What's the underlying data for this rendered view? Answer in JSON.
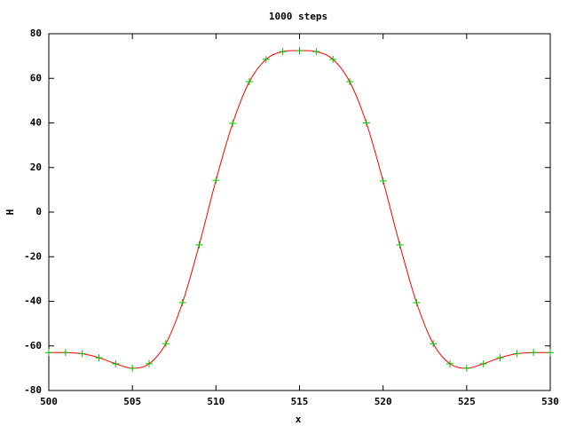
{
  "chart_data": {
    "type": "line",
    "title": "1000 steps",
    "x_label": "x",
    "y_label": "H",
    "x": [
      500,
      501,
      502,
      503,
      504,
      505,
      506,
      507,
      508,
      509,
      510,
      511,
      512,
      513,
      514,
      515,
      516,
      517,
      518,
      519,
      520,
      521,
      522,
      523,
      524,
      525,
      526,
      527,
      528,
      529,
      530
    ],
    "series": [
      {
        "color": "#ff0000",
        "style": "line",
        "values": [
          -63,
          -63,
          -63.5,
          -65.3,
          -68,
          -70,
          -68,
          -59,
          -40.6,
          -14.7,
          14.3,
          39.8,
          58.5,
          68.5,
          72,
          72.4,
          72,
          68.5,
          58.5,
          40,
          14,
          -14.7,
          -40.6,
          -59,
          -68,
          -70,
          -68,
          -65.3,
          -63.5,
          -63,
          -63
        ]
      },
      {
        "color": "#00c000",
        "style": "points",
        "values": [
          -63,
          -63,
          -63.5,
          -65.3,
          -68,
          -70,
          -68,
          -59,
          -40.6,
          -14.7,
          14.3,
          39.8,
          58.5,
          68.5,
          72,
          72.4,
          72,
          68.5,
          58.5,
          40,
          14,
          -14.7,
          -40.6,
          -59,
          -68,
          -70,
          -68,
          -65.3,
          -63.5,
          -63,
          -63
        ]
      }
    ],
    "xlim": [
      500,
      530
    ],
    "xticks": [
      500,
      505,
      510,
      515,
      520,
      525,
      530
    ],
    "ylim": [
      -80,
      80
    ],
    "yticks": [
      -80,
      -60,
      -40,
      -20,
      0,
      20,
      40,
      60,
      80
    ],
    "grid": false
  }
}
